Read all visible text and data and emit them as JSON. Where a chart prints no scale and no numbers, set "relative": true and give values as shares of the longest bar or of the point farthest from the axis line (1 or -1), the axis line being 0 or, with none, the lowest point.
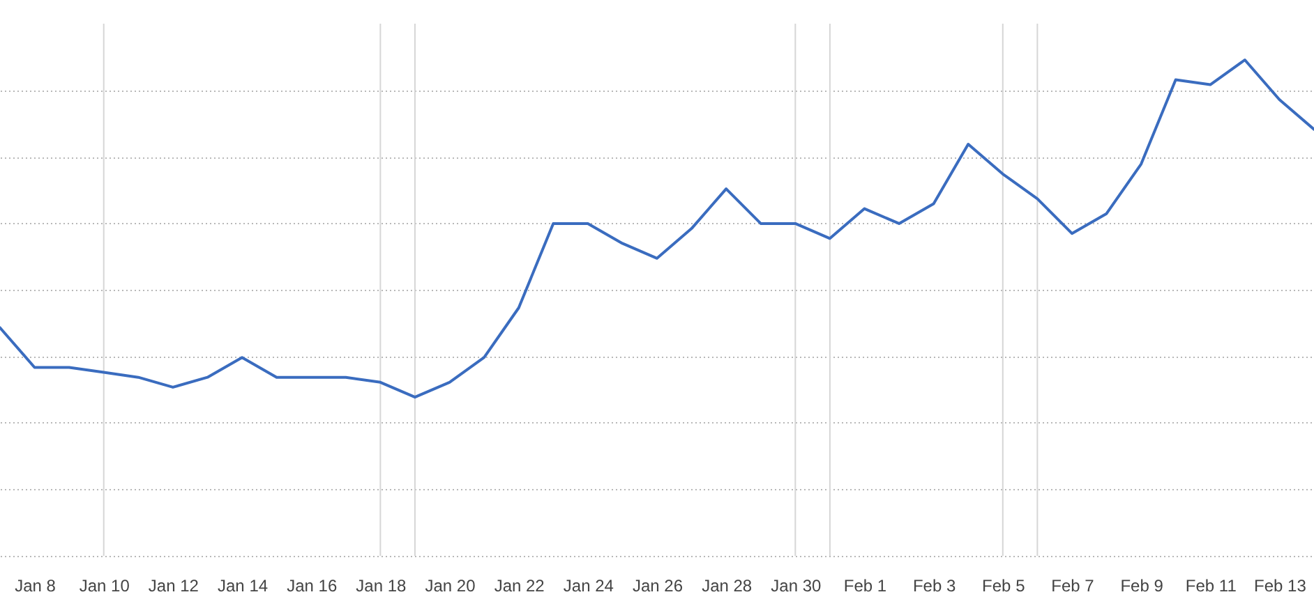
{
  "chart_data": {
    "type": "line",
    "relative": true,
    "x": [
      "--01-07",
      "--01-08",
      "--01-09",
      "--01-10",
      "--01-11",
      "--01-12",
      "--01-13",
      "--01-14",
      "--01-15",
      "--01-16",
      "--01-17",
      "--01-18",
      "--01-19",
      "--01-20",
      "--01-21",
      "--01-22",
      "--01-23",
      "--01-24",
      "--01-25",
      "--01-26",
      "--01-27",
      "--01-28",
      "--01-29",
      "--01-30",
      "--01-31",
      "--02-01",
      "--02-02",
      "--02-03",
      "--02-04",
      "--02-05",
      "--02-06",
      "--02-07",
      "--02-08",
      "--02-09",
      "--02-10",
      "--02-11",
      "--02-12",
      "--02-13",
      "--02-14"
    ],
    "series": [
      {
        "color": "#3a6cbf",
        "values": [
          0.46,
          0.38,
          0.38,
          0.37,
          0.36,
          0.34,
          0.36,
          0.4,
          0.36,
          0.36,
          0.36,
          0.35,
          0.32,
          0.35,
          0.4,
          0.5,
          0.67,
          0.67,
          0.63,
          0.6,
          0.66,
          0.74,
          0.67,
          0.67,
          0.64,
          0.7,
          0.67,
          0.71,
          0.83,
          0.77,
          0.72,
          0.65,
          0.69,
          0.79,
          0.96,
          0.95,
          1,
          0.92,
          0.86
        ]
      }
    ],
    "xlim": [
      "--01-07",
      "--02-14"
    ],
    "xticks": [
      {
        "value": "--01-08",
        "label": "Jan 8"
      },
      {
        "value": "--01-10",
        "label": "Jan 10"
      },
      {
        "value": "--01-12",
        "label": "Jan 12"
      },
      {
        "value": "--01-14",
        "label": "Jan 14"
      },
      {
        "value": "--01-16",
        "label": "Jan 16"
      },
      {
        "value": "--01-18",
        "label": "Jan 18"
      },
      {
        "value": "--01-20",
        "label": "Jan 20"
      },
      {
        "value": "--01-22",
        "label": "Jan 22"
      },
      {
        "value": "--01-24",
        "label": "Jan 24"
      },
      {
        "value": "--01-26",
        "label": "Jan 26"
      },
      {
        "value": "--01-28",
        "label": "Jan 28"
      },
      {
        "value": "--01-30",
        "label": "Jan 30"
      },
      {
        "value": "--02-01",
        "label": "Feb 1"
      },
      {
        "value": "--02-03",
        "label": "Feb 3"
      },
      {
        "value": "--02-05",
        "label": "Feb 5"
      },
      {
        "value": "--02-07",
        "label": "Feb 7"
      },
      {
        "value": "--02-09",
        "label": "Feb 9"
      },
      {
        "value": "--02-11",
        "label": "Feb 11"
      },
      {
        "value": "--02-13",
        "label": "Feb 13"
      }
    ],
    "grid": "y",
    "ref_lines": [
      {
        "axis": "x",
        "value": "--01-10",
        "color": "#d6d6d6"
      },
      {
        "axis": "x",
        "value": "--01-18",
        "color": "#d6d6d6"
      },
      {
        "axis": "x",
        "value": "--01-19",
        "color": "#d6d6d6"
      },
      {
        "axis": "x",
        "value": "--01-30",
        "color": "#d6d6d6"
      },
      {
        "axis": "x",
        "value": "--01-31",
        "color": "#d6d6d6"
      },
      {
        "axis": "x",
        "value": "--02-05",
        "color": "#d6d6d6"
      },
      {
        "axis": "x",
        "value": "--02-06",
        "color": "#d6d6d6"
      }
    ]
  }
}
